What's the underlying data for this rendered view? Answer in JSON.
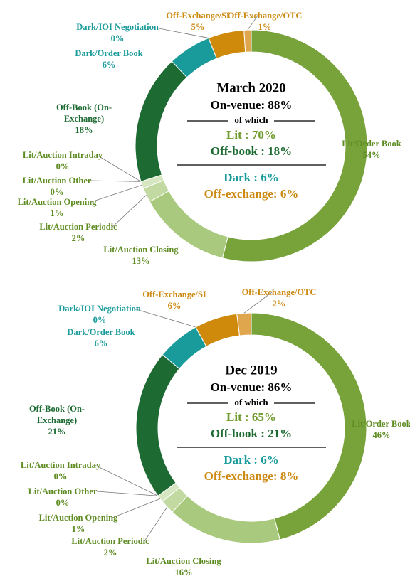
{
  "chart_data": [
    {
      "type": "donut",
      "categories": [
        "Lit/Order Book",
        "Lit/Auction Closing",
        "Lit/Auction Periodic",
        "Lit/Auction Opening",
        "Lit/Auction Other",
        "Lit/Auction Intraday",
        "Off-Book (On-Exchange)",
        "Dark/Order Book",
        "Dark/IOI Negotiation",
        "Off-Exchange/SI",
        "Off-Exchange/OTC"
      ],
      "values": [
        54,
        13,
        2,
        1,
        0,
        0,
        18,
        6,
        0,
        5,
        1
      ],
      "value_labels": [
        "54%",
        "13%",
        "2%",
        "1%",
        "0%",
        "0%",
        "18%",
        "6%",
        "0%",
        "5%",
        "1%"
      ],
      "colors": [
        "#78a23a",
        "#a9c97e",
        "#c3d9a2",
        "#d6e6c0",
        "#e3eed4",
        "#eaf2de",
        "#1d6b33",
        "#1a9b9b",
        "#1a9b9b",
        "#cf8a0c",
        "#dfa64e"
      ],
      "center_lines": [
        {
          "text": "March 2020",
          "color": "#000000"
        },
        {
          "text": "On-venue: 88%",
          "color": "#000000"
        },
        {
          "text": "of which",
          "color": "#000000"
        },
        {
          "text": "Lit : 70%",
          "color": "#6f9a2c"
        },
        {
          "text": "Off-book : 18%",
          "color": "#1d6b33"
        },
        {
          "text": "Dark : 6%",
          "color": "#1a9b9b"
        },
        {
          "text": "Off-exchange: 6%",
          "color": "#cc8a12"
        }
      ]
    },
    {
      "type": "donut",
      "categories": [
        "Lit/Order Book",
        "Lit/Auction Closing",
        "Lit/Auction Periodic",
        "Lit/Auction Opening",
        "Lit/Auction Other",
        "Lit/Auction Intraday",
        "Off-Book (On-Exchange)",
        "Dark/Order Book",
        "Dark/IOI Negotiation",
        "Off-Exchange/SI",
        "Off-Exchange/OTC"
      ],
      "values": [
        46,
        16,
        2,
        1,
        0,
        0,
        21,
        6,
        0,
        6,
        2
      ],
      "value_labels": [
        "46%",
        "16%",
        "2%",
        "1%",
        "0%",
        "0%",
        "21%",
        "6%",
        "0%",
        "6%",
        "2%"
      ],
      "colors": [
        "#78a23a",
        "#a9c97e",
        "#c3d9a2",
        "#d6e6c0",
        "#e3eed4",
        "#eaf2de",
        "#1d6b33",
        "#1a9b9b",
        "#1a9b9b",
        "#cf8a0c",
        "#dfa64e"
      ],
      "center_lines": [
        {
          "text": "Dec 2019",
          "color": "#000000"
        },
        {
          "text": "On-venue: 86%",
          "color": "#000000"
        },
        {
          "text": "of which",
          "color": "#000000"
        },
        {
          "text": "Lit : 65%",
          "color": "#6f9a2c"
        },
        {
          "text": "Off-book : 21%",
          "color": "#1d6b33"
        },
        {
          "text": "Dark : 6%",
          "color": "#1a9b9b"
        },
        {
          "text": "Off-exchange: 8%",
          "color": "#cc8a12"
        }
      ]
    }
  ]
}
